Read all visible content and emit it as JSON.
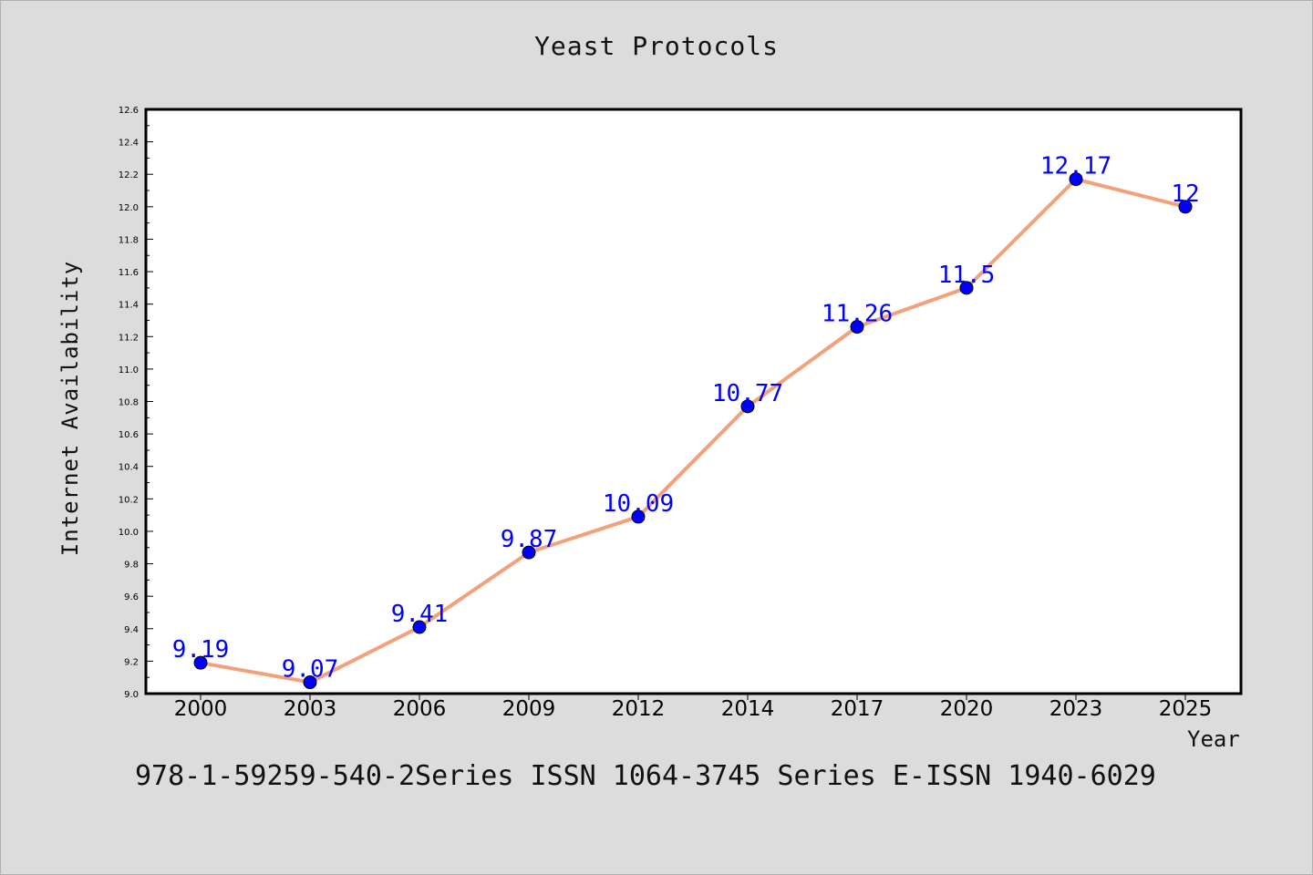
{
  "chart_data": {
    "type": "line",
    "title": "Yeast Protocols",
    "xlabel": "Year",
    "ylabel": "Internet Availability",
    "categories": [
      "2000",
      "2003",
      "2006",
      "2009",
      "2012",
      "2014",
      "2017",
      "2020",
      "2023",
      "2025"
    ],
    "series": [
      {
        "values": [
          9.19,
          9.07,
          9.41,
          9.87,
          10.09,
          10.77,
          11.26,
          11.5,
          12.17,
          12
        ],
        "data_labels": [
          "9.19",
          "9.07",
          "9.41",
          "9.87",
          "10.09",
          "10.77",
          "11.26",
          "11.5",
          "12.17",
          "12"
        ]
      }
    ],
    "ylim": [
      9.0,
      12.6
    ],
    "y_ticks": [
      "9.0",
      "9.2",
      "9.4",
      "9.6",
      "9.8",
      "10.0",
      "10.2",
      "10.4",
      "10.6",
      "10.8",
      "11.0",
      "11.2",
      "11.4",
      "11.6",
      "11.8",
      "12.0",
      "12.2",
      "12.4",
      "12.6"
    ],
    "grid": false,
    "line_color": "#f4a07a",
    "marker_color": "#0000ff",
    "label_color": "#0000ff",
    "background_color": "#dcdcdc",
    "plot_background_color": "#ffffff"
  },
  "footer": {
    "text": "978-1-59259-540-2Series ISSN 1064-3745 Series E-ISSN 1940-6029"
  }
}
